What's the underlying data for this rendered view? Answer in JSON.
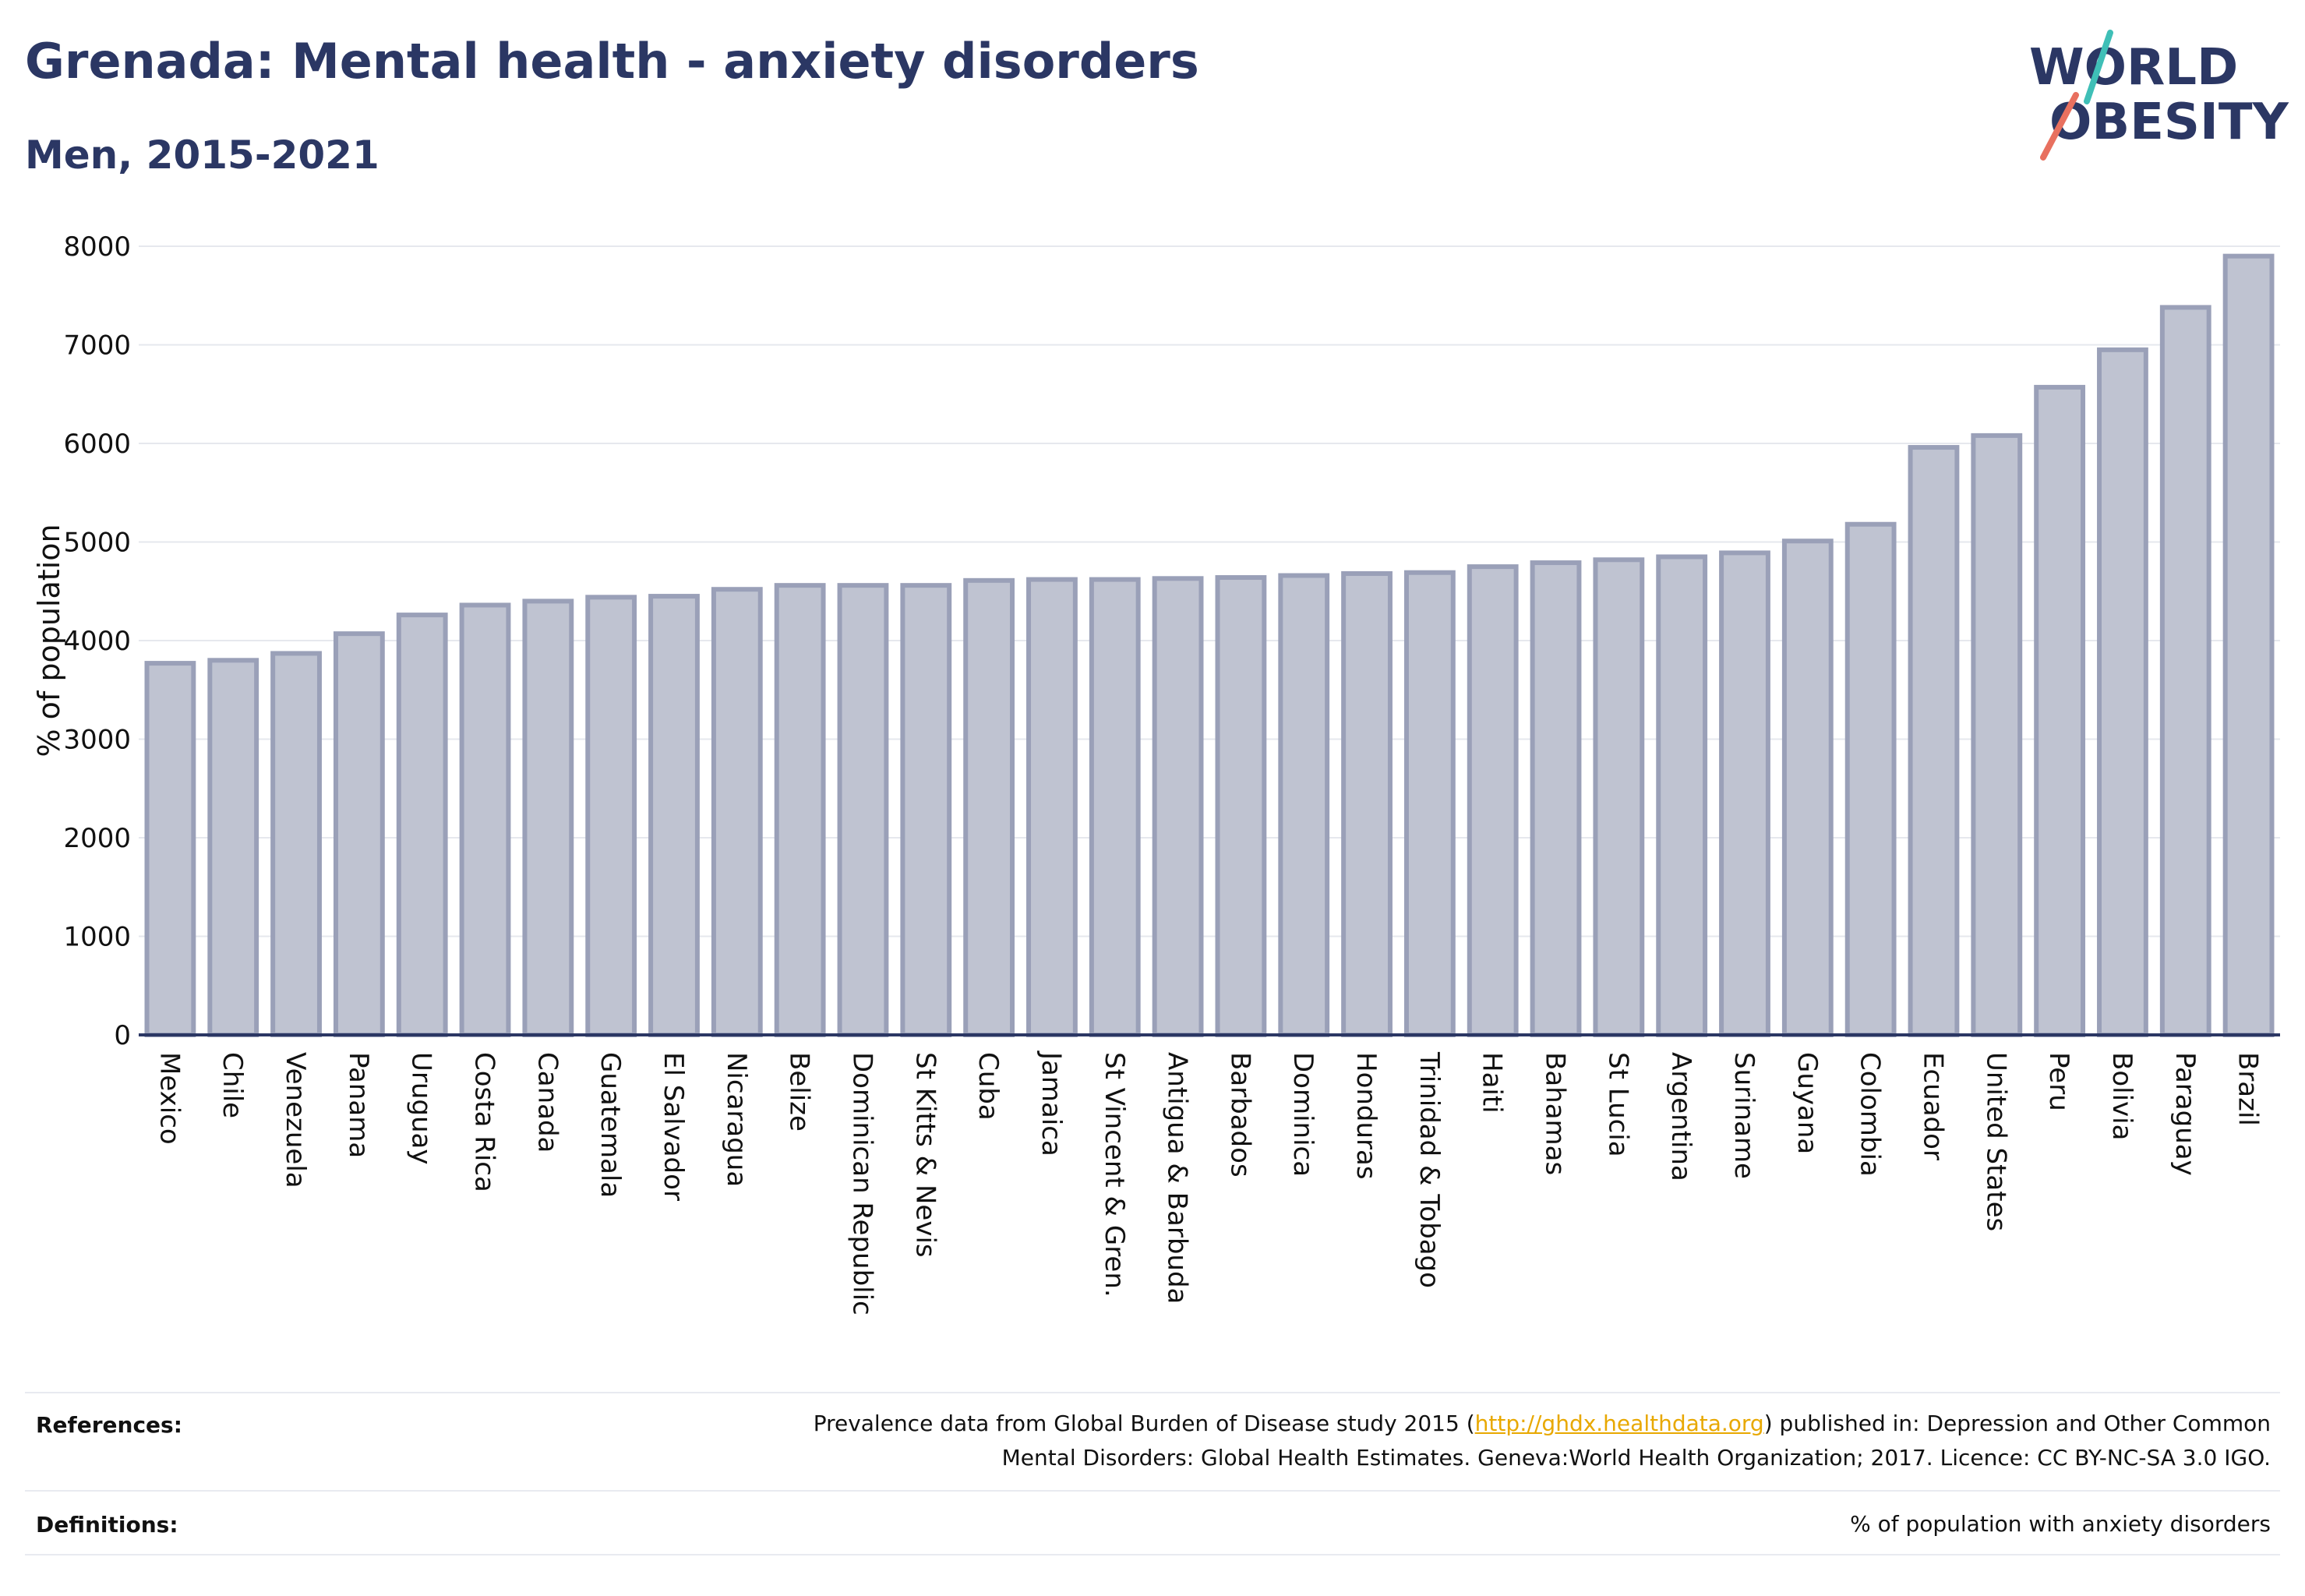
{
  "header": {
    "title": "Grenada: Mental health - anxiety disorders",
    "subtitle": "Men, 2015-2021"
  },
  "logo": {
    "line1": "WORLD",
    "line2": "OBESITY",
    "colors": {
      "text": "#2b3764",
      "slash_teal": "#3fbfb7",
      "slash_coral": "#e8705f"
    }
  },
  "chart_data": {
    "type": "bar",
    "title": "",
    "xlabel": "",
    "ylabel": "% of population",
    "ylim": [
      0,
      8000
    ],
    "yticks": [
      0,
      1000,
      2000,
      3000,
      4000,
      5000,
      6000,
      7000,
      8000
    ],
    "grid": true,
    "bar_color": "#bfc3d1",
    "bar_border_color": "#9aa0b8",
    "categories": [
      "Mexico",
      "Chile",
      "Venezuela",
      "Panama",
      "Uruguay",
      "Costa Rica",
      "Canada",
      "Guatemala",
      "El Salvador",
      "Nicaragua",
      "Belize",
      "Dominican Republic",
      "St Kitts & Nevis",
      "Cuba",
      "Jamaica",
      "St Vincent & Gren.",
      "Antigua & Barbuda",
      "Barbados",
      "Dominica",
      "Honduras",
      "Trinidad & Tobago",
      "Haiti",
      "Bahamas",
      "St Lucia",
      "Argentina",
      "Suriname",
      "Guyana",
      "Colombia",
      "Ecuador",
      "United States",
      "Peru",
      "Bolivia",
      "Paraguay",
      "Brazil"
    ],
    "values": [
      3770,
      3800,
      3870,
      4070,
      4260,
      4360,
      4400,
      4440,
      4450,
      4520,
      4560,
      4560,
      4560,
      4610,
      4620,
      4620,
      4630,
      4640,
      4660,
      4680,
      4690,
      4750,
      4790,
      4820,
      4850,
      4890,
      5010,
      5180,
      5960,
      6080,
      6570,
      6950,
      7380,
      7900
    ]
  },
  "footer": {
    "references_label": "References:",
    "references_before": "Prevalence data from Global Burden of Disease study 2015 (",
    "references_link": "http://ghdx.healthdata.org",
    "references_after_line1": ") published in: Depression and Other Common",
    "references_line2": "Mental Disorders: Global Health Estimates. Geneva:World Health Organization; 2017. Licence: CC BY-NC-SA 3.0 IGO.",
    "definitions_label": "Definitions:",
    "definitions_text": "% of population with anxiety disorders"
  }
}
